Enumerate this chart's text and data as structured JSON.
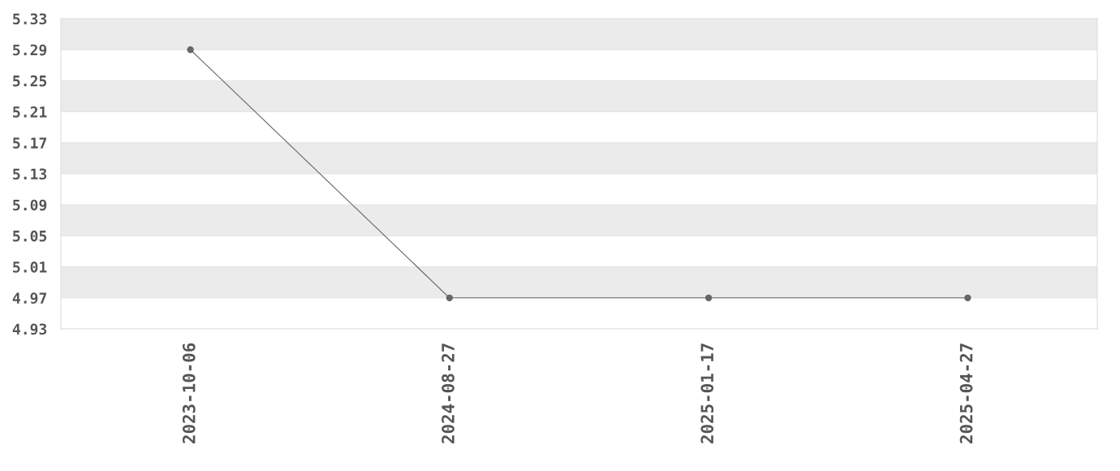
{
  "chart_data": {
    "type": "line",
    "categories": [
      "2023-10-06",
      "2024-08-27",
      "2025-01-17",
      "2025-04-27"
    ],
    "series": [
      {
        "color": "#666666",
        "values": [
          5.29,
          4.97,
          4.97,
          4.97
        ]
      }
    ],
    "ylim": [
      4.93,
      5.33
    ],
    "yticks": [
      4.93,
      4.97,
      5.01,
      5.05,
      5.09,
      5.13,
      5.17,
      5.21,
      5.25,
      5.29,
      5.33
    ],
    "grid": "y",
    "marker": "circle",
    "line_style": "solid"
  }
}
